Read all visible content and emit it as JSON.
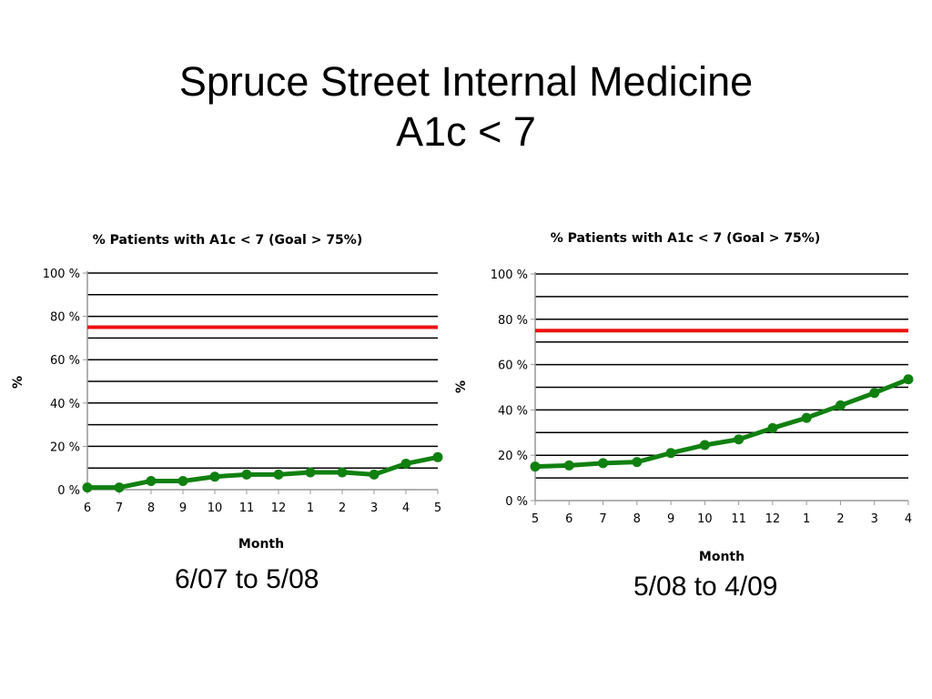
{
  "slide": {
    "title_line1": "Spruce Street Internal Medicine",
    "title_line2": "A1c < 7"
  },
  "colors": {
    "series": "#108010",
    "goal": "#ee1111",
    "grid": "#000000",
    "axis": "#999999"
  },
  "chart_data": [
    {
      "type": "line",
      "title": "% Patients with A1c < 7 (Goal > 75%)",
      "xlabel": "Month",
      "ylabel": "%",
      "categories": [
        "6",
        "7",
        "8",
        "9",
        "10",
        "11",
        "12",
        "1",
        "2",
        "3",
        "4",
        "5"
      ],
      "series": [
        {
          "values": [
            1,
            1,
            4,
            4,
            6,
            7,
            7,
            8,
            8,
            7,
            12,
            15
          ]
        }
      ],
      "goal_line": 75,
      "ylim": [
        0,
        100
      ],
      "yticks": [
        "0 %",
        "20 %",
        "40 %",
        "60 %",
        "80 %",
        "100 %"
      ],
      "grid": true,
      "caption": "6/07 to 5/08"
    },
    {
      "type": "line",
      "title": "% Patients with A1c < 7 (Goal > 75%)",
      "xlabel": "Month",
      "ylabel": "%",
      "categories": [
        "5",
        "6",
        "7",
        "8",
        "9",
        "10",
        "11",
        "12",
        "1",
        "2",
        "3",
        "4"
      ],
      "series": [
        {
          "values": [
            15,
            15.5,
            16.5,
            17,
            21,
            24.5,
            27,
            32,
            36.5,
            42,
            47.5,
            53.5
          ]
        }
      ],
      "goal_line": 75,
      "ylim": [
        0,
        100
      ],
      "yticks": [
        "0 %",
        "20 %",
        "40 %",
        "60 %",
        "80 %",
        "100 %"
      ],
      "grid": true,
      "caption": "5/08 to 4/09"
    }
  ]
}
